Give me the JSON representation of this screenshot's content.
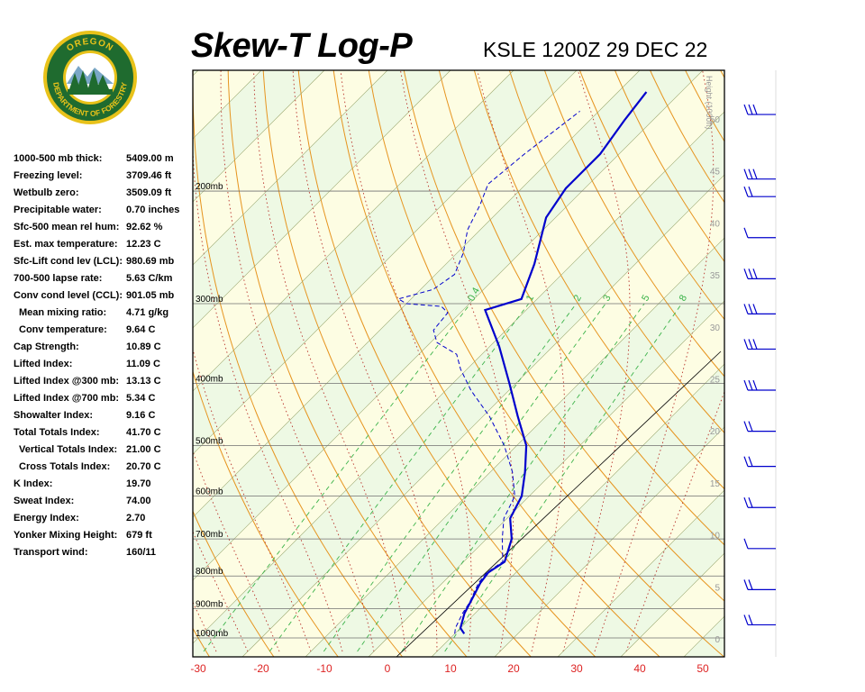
{
  "header": {
    "title": "Skew-T Log-P",
    "station": "KSLE 1200Z 29 DEC 22"
  },
  "logo": {
    "top_text": "OREGON",
    "bottom_text": "DEPARTMENT OF FORESTRY",
    "ring_color": "#1f6b2f",
    "accent_color": "#e8c21a"
  },
  "stats": [
    {
      "label": "1000-500 mb thick:",
      "value": "5409.00 m",
      "indent": false
    },
    {
      "label": "Freezing level:",
      "value": "3709.46 ft",
      "indent": false
    },
    {
      "label": "Wetbulb zero:",
      "value": "3509.09 ft",
      "indent": false
    },
    {
      "label": "Precipitable water:",
      "value": "0.70 inches",
      "indent": false
    },
    {
      "label": "Sfc-500 mean rel hum:",
      "value": "92.62 %",
      "indent": false
    },
    {
      "label": "Est. max temperature:",
      "value": "12.23 C",
      "indent": false
    },
    {
      "label": "Sfc-Lift cond lev (LCL):",
      "value": "980.69 mb",
      "indent": false
    },
    {
      "label": "700-500 lapse rate:",
      "value": "5.63 C/km",
      "indent": false
    },
    {
      "label": "Conv cond level (CCL):",
      "value": "901.05 mb",
      "indent": false
    },
    {
      "label": "Mean mixing ratio:",
      "value": "4.71 g/kg",
      "indent": true
    },
    {
      "label": "Conv temperature:",
      "value": "9.64 C",
      "indent": true
    },
    {
      "label": "Cap Strength:",
      "value": "10.89 C",
      "indent": false
    },
    {
      "label": "Lifted Index:",
      "value": "11.09 C",
      "indent": false
    },
    {
      "label": "Lifted Index @300 mb:",
      "value": "13.13 C",
      "indent": false
    },
    {
      "label": "Lifted Index @700 mb:",
      "value": "5.34 C",
      "indent": false
    },
    {
      "label": "Showalter Index:",
      "value": "9.16 C",
      "indent": false
    },
    {
      "label": "Total Totals Index:",
      "value": "41.70 C",
      "indent": false
    },
    {
      "label": "Vertical Totals Index:",
      "value": "21.00 C",
      "indent": true
    },
    {
      "label": "Cross Totals Index:",
      "value": "20.70 C",
      "indent": true
    },
    {
      "label": "K Index:",
      "value": "19.70",
      "indent": false
    },
    {
      "label": "Sweat Index:",
      "value": "74.00",
      "indent": false
    },
    {
      "label": "Energy Index:",
      "value": "2.70",
      "indent": false
    },
    {
      "label": "Yonker Mixing Height:",
      "value": "679 ft",
      "indent": false
    },
    {
      "label": "Transport wind:",
      "value": "160/11",
      "indent": false
    }
  ],
  "chart_data": {
    "type": "line",
    "xlabel": "",
    "ylabel": "",
    "x_ticks": [
      "-30",
      "-20",
      "-10",
      "0",
      "10",
      "20",
      "30",
      "40",
      "50"
    ],
    "x_tick_values": [
      -30,
      -20,
      -10,
      0,
      10,
      20,
      30,
      40,
      50
    ],
    "pressure_ticks": [
      "1000mb",
      "900mb",
      "800mb",
      "700mb",
      "600mb",
      "500mb",
      "400mb",
      "300mb",
      "200mb"
    ],
    "pressure_values": [
      1000,
      900,
      800,
      700,
      600,
      500,
      400,
      300,
      200
    ],
    "height_axis_label": "Height (1000ft)",
    "height_ticks": [
      "0",
      "5",
      "10",
      "15",
      "20",
      "25",
      "30",
      "35",
      "40",
      "45",
      "50"
    ],
    "height_values": [
      0,
      5,
      10,
      15,
      20,
      25,
      30,
      35,
      40,
      45,
      50
    ],
    "mixing_ratio_labels": [
      "0.4",
      "1",
      "2",
      "3",
      "5",
      "8"
    ],
    "mixing_ratio_values": [
      0.4,
      1,
      2,
      3,
      5,
      8
    ],
    "series": [
      {
        "name": "",
        "style": "solid",
        "color": "#0000cc",
        "points": [
          {
            "p": 985,
            "t": 11.5
          },
          {
            "p": 965,
            "t": 10.0
          },
          {
            "p": 915,
            "t": 8.3
          },
          {
            "p": 880,
            "t": 7.5
          },
          {
            "p": 820,
            "t": 6.0
          },
          {
            "p": 790,
            "t": 5.6
          },
          {
            "p": 760,
            "t": 6.5
          },
          {
            "p": 700,
            "t": 4.0
          },
          {
            "p": 650,
            "t": 0.5
          },
          {
            "p": 600,
            "t": -1.2
          },
          {
            "p": 550,
            "t": -4.5
          },
          {
            "p": 500,
            "t": -8.5
          },
          {
            "p": 450,
            "t": -14.5
          },
          {
            "p": 400,
            "t": -21.0
          },
          {
            "p": 350,
            "t": -28.5
          },
          {
            "p": 307,
            "t": -36.5
          },
          {
            "p": 295,
            "t": -32.5
          },
          {
            "p": 260,
            "t": -36.0
          },
          {
            "p": 220,
            "t": -41.5
          },
          {
            "p": 198,
            "t": -43.0
          },
          {
            "p": 175,
            "t": -43.0
          },
          {
            "p": 155,
            "t": -44.5
          },
          {
            "p": 140,
            "t": -45.5
          }
        ]
      },
      {
        "name": "",
        "style": "dashed",
        "color": "#0000cc",
        "points": [
          {
            "p": 985,
            "t": 10.0
          },
          {
            "p": 965,
            "t": 9.2
          },
          {
            "p": 915,
            "t": 8.0
          },
          {
            "p": 880,
            "t": 7.4
          },
          {
            "p": 820,
            "t": 5.7
          },
          {
            "p": 790,
            "t": 5.4
          },
          {
            "p": 760,
            "t": 6.2
          },
          {
            "p": 700,
            "t": 2.5
          },
          {
            "p": 650,
            "t": -0.5
          },
          {
            "p": 600,
            "t": -2.3
          },
          {
            "p": 550,
            "t": -6.5
          },
          {
            "p": 500,
            "t": -12.0
          },
          {
            "p": 450,
            "t": -19.0
          },
          {
            "p": 410,
            "t": -26.0
          },
          {
            "p": 380,
            "t": -31.0
          },
          {
            "p": 360,
            "t": -34.0
          },
          {
            "p": 345,
            "t": -39.0
          },
          {
            "p": 330,
            "t": -41.5
          },
          {
            "p": 310,
            "t": -42.0
          },
          {
            "p": 303,
            "t": -44.0
          },
          {
            "p": 300,
            "t": -50.0
          },
          {
            "p": 295,
            "t": -52.0
          },
          {
            "p": 285,
            "t": -48.0
          },
          {
            "p": 270,
            "t": -47.0
          },
          {
            "p": 250,
            "t": -49.0
          },
          {
            "p": 230,
            "t": -52.0
          },
          {
            "p": 210,
            "t": -54.0
          },
          {
            "p": 195,
            "t": -56.0
          },
          {
            "p": 175,
            "t": -55.0
          },
          {
            "p": 150,
            "t": -53.0
          }
        ]
      }
    ],
    "wind_barbs": [
      {
        "y_frac": 0.06,
        "barbs": 3
      },
      {
        "y_frac": 0.17,
        "barbs": 3
      },
      {
        "y_frac": 0.2,
        "barbs": 2
      },
      {
        "y_frac": 0.27,
        "barbs": 1
      },
      {
        "y_frac": 0.34,
        "barbs": 3
      },
      {
        "y_frac": 0.4,
        "barbs": 3
      },
      {
        "y_frac": 0.46,
        "barbs": 3
      },
      {
        "y_frac": 0.53,
        "barbs": 3
      },
      {
        "y_frac": 0.6,
        "barbs": 2
      },
      {
        "y_frac": 0.66,
        "barbs": 2
      },
      {
        "y_frac": 0.73,
        "barbs": 2
      },
      {
        "y_frac": 0.8,
        "barbs": 1
      },
      {
        "y_frac": 0.87,
        "barbs": 2
      },
      {
        "y_frac": 0.93,
        "barbs": 2
      }
    ]
  }
}
